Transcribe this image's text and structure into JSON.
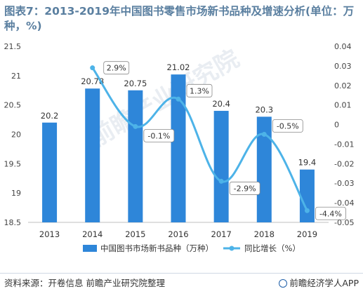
{
  "title": "图表7：2013-2019年中国图书零售市场新书品种及增速分析(单位：万种，%)",
  "footer": {
    "source": "资料来源：开卷信息 前瞻产业研究院整理",
    "brand": "前瞻经济学人APP",
    "brand_icon": "qianzhan-logo-icon"
  },
  "watermark": "前瞻产业研究院",
  "chart_data": {
    "type": "bar+line",
    "categories": [
      "2013",
      "2014",
      "2015",
      "2016",
      "2017",
      "2018",
      "2019"
    ],
    "series": [
      {
        "name": "中国图书市场新书品种（万种）",
        "type": "bar",
        "axis": "left",
        "color": "#2e86d9",
        "values": [
          20.2,
          20.78,
          20.75,
          21.02,
          20.4,
          20.3,
          19.4
        ],
        "labels": [
          "20.2",
          "20.78",
          "20.75",
          "21.02",
          "20.4",
          "20.3",
          "19.4"
        ]
      },
      {
        "name": "同比增长（%）",
        "type": "line",
        "axis": "right",
        "color": "#4db3e8",
        "x": [
          "2014",
          "2015",
          "2016",
          "2017",
          "2018",
          "2019"
        ],
        "values": [
          0.029,
          -0.001,
          0.013,
          -0.029,
          -0.005,
          -0.044
        ],
        "labels": [
          "2.9%",
          "-0.1%",
          "1.3%",
          "-2.9%",
          "-0.5%",
          "-4.4%"
        ]
      }
    ],
    "y_left": {
      "min": 18.5,
      "max": 21.5,
      "ticks": [
        "18.5",
        "19",
        "19.5",
        "20",
        "20.5",
        "21",
        "21.5"
      ]
    },
    "y_right": {
      "min": -0.05,
      "max": 0.04,
      "ticks": [
        "-0.05",
        "-0.04",
        "-0.03",
        "-0.02",
        "-0.01",
        "0",
        "0.01",
        "0.02",
        "0.03",
        "0.04"
      ]
    },
    "grid": false,
    "legend": "bottom"
  }
}
